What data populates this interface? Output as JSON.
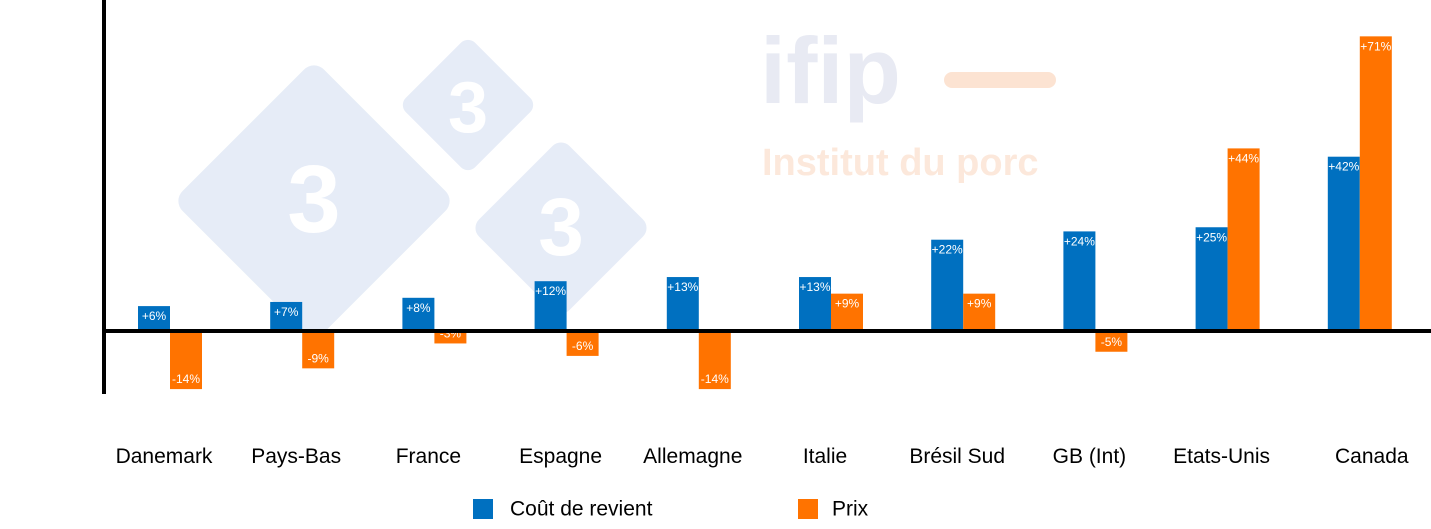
{
  "watermark": {
    "logo_text": "ifip",
    "logo_subtitle": "Institut du porc",
    "badge_digits": [
      "3",
      "3",
      "3"
    ]
  },
  "colors": {
    "cost": "#0070C0",
    "price": "#FF7300",
    "axis": "#000000"
  },
  "chart_data": {
    "type": "bar",
    "categories": [
      "Danemark",
      "Pays-Bas",
      "France",
      "Espagne",
      "Allemagne",
      "Italie",
      "Brésil Sud",
      "GB (Int)",
      "Etats-Unis",
      "Canada"
    ],
    "series": [
      {
        "name": "Coût de revient",
        "values": [
          6,
          7,
          8,
          12,
          13,
          13,
          22,
          24,
          25,
          42
        ],
        "labels": [
          "+6%",
          "+7%",
          "+8%",
          "+12%",
          "+13%",
          "+13%",
          "+22%",
          "+24%",
          "+25%",
          "+42%"
        ]
      },
      {
        "name": "Prix",
        "values": [
          -14,
          -9,
          -3,
          -6,
          -14,
          9,
          9,
          -5,
          44,
          71
        ],
        "labels": [
          "-14%",
          "-9%",
          "-3%",
          "-6%",
          "-14%",
          "+9%",
          "+9%",
          "-5%",
          "+44%",
          "+71%"
        ]
      }
    ],
    "ylim": [
      -15,
      80
    ],
    "grid": false,
    "legend_position": "bottom"
  }
}
